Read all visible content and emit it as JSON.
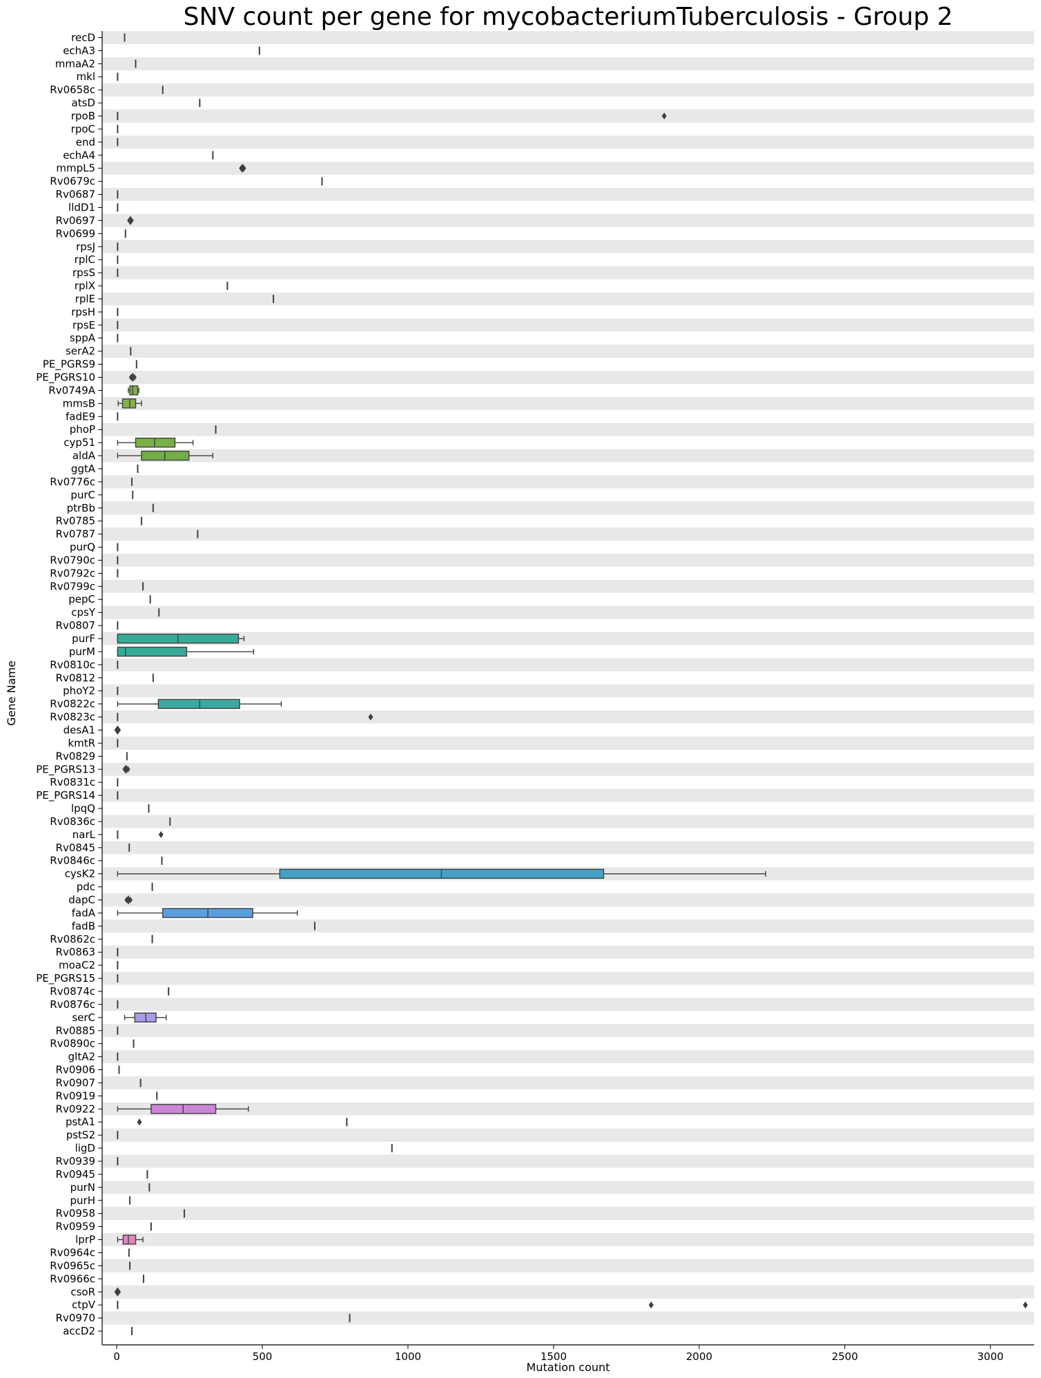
{
  "chart_data": {
    "type": "box",
    "orientation": "horizontal",
    "title": "SNV count per gene for mycobacteriumTuberculosis - Group 2",
    "xlabel": "Mutation count",
    "ylabel": "Gene Name",
    "xlim": [
      -50,
      3150
    ],
    "xticks": [
      0,
      500,
      1000,
      1500,
      2000,
      2500,
      3000
    ],
    "grid": false,
    "background_bands": "alternating grey rows",
    "colors": {
      "band": "#e8e8e8",
      "line": "#3f3f3f",
      "point": "#3f3f3f"
    },
    "genes": [
      {
        "name": "recD",
        "median": 27
      },
      {
        "name": "echA3",
        "median": 490
      },
      {
        "name": "mmaA2",
        "median": 65
      },
      {
        "name": "mkl",
        "median": 3
      },
      {
        "name": "Rv0658c",
        "median": 158
      },
      {
        "name": "atsD",
        "median": 285
      },
      {
        "name": "rpoB",
        "median": 3,
        "fliers": [
          1880
        ]
      },
      {
        "name": "rpoC",
        "median": 3
      },
      {
        "name": "end",
        "median": 3
      },
      {
        "name": "echA4",
        "median": 330
      },
      {
        "name": "mmpL5",
        "median": 432,
        "fliers": [
          428,
          436
        ]
      },
      {
        "name": "Rv0679c",
        "median": 705
      },
      {
        "name": "Rv0687",
        "median": 3
      },
      {
        "name": "lldD1",
        "median": 3
      },
      {
        "name": "Rv0697",
        "median": 47,
        "fliers": [
          44,
          50
        ]
      },
      {
        "name": "Rv0699",
        "median": 30
      },
      {
        "name": "rpsJ",
        "median": 3
      },
      {
        "name": "rplC",
        "median": 3
      },
      {
        "name": "rpsS",
        "median": 3
      },
      {
        "name": "rplX",
        "median": 380
      },
      {
        "name": "rplE",
        "median": 538
      },
      {
        "name": "rpsH",
        "median": 3
      },
      {
        "name": "rpsE",
        "median": 3
      },
      {
        "name": "sppA",
        "median": 3
      },
      {
        "name": "serA2",
        "median": 48
      },
      {
        "name": "PE_PGRS9",
        "median": 68
      },
      {
        "name": "PE_PGRS10",
        "median": 55,
        "fliers": [
          50,
          55,
          60
        ]
      },
      {
        "name": "Rv0749A",
        "box": [
          45,
          55,
          72
        ],
        "whiskers": [
          40,
          76
        ],
        "color": "#84b04a"
      },
      {
        "name": "mmsB",
        "box": [
          20,
          45,
          65
        ],
        "whiskers": [
          5,
          85
        ],
        "color": "#84b04a"
      },
      {
        "name": "fadE9",
        "median": 3
      },
      {
        "name": "phoP",
        "median": 340
      },
      {
        "name": "cyp51",
        "box": [
          65,
          130,
          200
        ],
        "whiskers": [
          3,
          262
        ],
        "color": "#78b046"
      },
      {
        "name": "aldA",
        "box": [
          85,
          165,
          248
        ],
        "whiskers": [
          3,
          330
        ],
        "color": "#72ae48"
      },
      {
        "name": "ggtA",
        "median": 72
      },
      {
        "name": "Rv0776c",
        "median": 52
      },
      {
        "name": "purC",
        "median": 55
      },
      {
        "name": "ptrBb",
        "median": 125
      },
      {
        "name": "Rv0785",
        "median": 85
      },
      {
        "name": "Rv0787",
        "median": 278
      },
      {
        "name": "purQ",
        "median": 3
      },
      {
        "name": "Rv0790c",
        "median": 3
      },
      {
        "name": "Rv0792c",
        "median": 3
      },
      {
        "name": "Rv0799c",
        "median": 90
      },
      {
        "name": "pepC",
        "median": 115
      },
      {
        "name": "cpsY",
        "median": 145
      },
      {
        "name": "Rv0807",
        "median": 3
      },
      {
        "name": "purF",
        "box": [
          3,
          210,
          418
        ],
        "whiskers": [
          3,
          437
        ],
        "color": "#3aaa98"
      },
      {
        "name": "purM",
        "box": [
          3,
          30,
          240
        ],
        "whiskers": [
          3,
          470
        ],
        "color": "#3aaa98"
      },
      {
        "name": "Rv0810c",
        "median": 3
      },
      {
        "name": "Rv0812",
        "median": 125
      },
      {
        "name": "phoY2",
        "median": 3
      },
      {
        "name": "Rv0822c",
        "box": [
          143,
          285,
          422
        ],
        "whiskers": [
          3,
          565
        ],
        "color": "#3aaaa0"
      },
      {
        "name": "Rv0823c",
        "median": 3,
        "fliers": [
          872
        ]
      },
      {
        "name": "desA1",
        "median": 3,
        "fliers": [
          0,
          3,
          6
        ]
      },
      {
        "name": "kmtR",
        "median": 3
      },
      {
        "name": "Rv0829",
        "median": 35
      },
      {
        "name": "PE_PGRS13",
        "median": 32,
        "fliers": [
          28,
          32,
          38
        ]
      },
      {
        "name": "Rv0831c",
        "median": 3
      },
      {
        "name": "PE_PGRS14",
        "median": 3
      },
      {
        "name": "lpqQ",
        "median": 110
      },
      {
        "name": "Rv0836c",
        "median": 183
      },
      {
        "name": "narL",
        "median": 3,
        "fliers": [
          152
        ]
      },
      {
        "name": "Rv0845",
        "median": 43
      },
      {
        "name": "Rv0846c",
        "median": 155
      },
      {
        "name": "cysK2",
        "box": [
          560,
          1115,
          1672
        ],
        "whiskers": [
          3,
          2228
        ],
        "color": "#42a2c8"
      },
      {
        "name": "pdc",
        "median": 122
      },
      {
        "name": "dapC",
        "median": 40,
        "fliers": [
          35,
          40,
          46
        ]
      },
      {
        "name": "fadA",
        "box": [
          158,
          313,
          467
        ],
        "whiskers": [
          3,
          620
        ],
        "color": "#5a9fe0"
      },
      {
        "name": "fadB",
        "median": 680
      },
      {
        "name": "Rv0862c",
        "median": 122
      },
      {
        "name": "Rv0863",
        "median": 3
      },
      {
        "name": "moaC2",
        "median": 3
      },
      {
        "name": "PE_PGRS15",
        "median": 3
      },
      {
        "name": "Rv0874c",
        "median": 178
      },
      {
        "name": "Rv0876c",
        "median": 3
      },
      {
        "name": "serC",
        "box": [
          62,
          100,
          135
        ],
        "whiskers": [
          27,
          170
        ],
        "color": "#a89ce8"
      },
      {
        "name": "Rv0885",
        "median": 3
      },
      {
        "name": "Rv0890c",
        "median": 58
      },
      {
        "name": "gltA2",
        "median": 3
      },
      {
        "name": "Rv0906",
        "median": 8
      },
      {
        "name": "Rv0907",
        "median": 82
      },
      {
        "name": "Rv0919",
        "median": 138
      },
      {
        "name": "Rv0922",
        "box": [
          118,
          228,
          340
        ],
        "whiskers": [
          3,
          452
        ],
        "color": "#cc86d8"
      },
      {
        "name": "pstA1",
        "median": 790,
        "fliers": [
          78
        ]
      },
      {
        "name": "pstS2",
        "median": 3
      },
      {
        "name": "ligD",
        "median": 945
      },
      {
        "name": "Rv0939",
        "median": 3
      },
      {
        "name": "Rv0945",
        "median": 105
      },
      {
        "name": "purN",
        "median": 112
      },
      {
        "name": "purH",
        "median": 45
      },
      {
        "name": "Rv0958",
        "median": 232
      },
      {
        "name": "Rv0959",
        "median": 118
      },
      {
        "name": "lprP",
        "box": [
          22,
          40,
          65
        ],
        "whiskers": [
          3,
          90
        ],
        "color": "#e482c0"
      },
      {
        "name": "Rv0964c",
        "median": 42
      },
      {
        "name": "Rv0965c",
        "median": 45
      },
      {
        "name": "Rv0966c",
        "median": 92
      },
      {
        "name": "csoR",
        "median": 3,
        "fliers": [
          0,
          3,
          6
        ]
      },
      {
        "name": "ctpV",
        "median": 3,
        "fliers": [
          1835,
          3120
        ]
      },
      {
        "name": "Rv0970",
        "median": 800
      },
      {
        "name": "accD2",
        "median": 52
      }
    ]
  }
}
